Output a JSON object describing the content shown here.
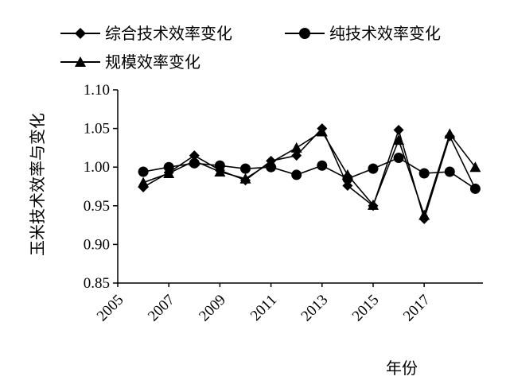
{
  "chart_data": {
    "type": "line",
    "xlabel": "年份",
    "ylabel": "玉米技术效率与变化",
    "ylim": [
      0.85,
      1.1
    ],
    "yticks": [
      "0.85",
      "0.90",
      "0.95",
      "1.00",
      "1.05",
      "1.10"
    ],
    "xtick_labels": [
      "2005",
      "2007",
      "2009",
      "2011",
      "2013",
      "2015",
      "2017"
    ],
    "x": [
      2006,
      2007,
      2008,
      2009,
      2010,
      2011,
      2012,
      2013,
      2014,
      2015,
      2016,
      2017,
      2018,
      2019
    ],
    "grid": false,
    "legend_position": "top",
    "series": [
      {
        "name": "综合技术效率变化",
        "marker": "diamond",
        "color": "#000000",
        "values": [
          0.974,
          0.993,
          1.015,
          0.996,
          0.983,
          1.008,
          1.015,
          1.05,
          0.976,
          0.95,
          1.048,
          0.933,
          1.04,
          0.972
        ]
      },
      {
        "name": "纯技术效率变化",
        "marker": "circle",
        "color": "#000000",
        "values": [
          0.994,
          1.0,
          1.005,
          1.002,
          0.998,
          1.0,
          0.99,
          1.002,
          0.985,
          0.998,
          1.012,
          0.992,
          0.994,
          0.972
        ]
      },
      {
        "name": "规模效率变化",
        "marker": "triangle",
        "color": "#000000",
        "values": [
          0.98,
          0.992,
          1.008,
          0.994,
          0.985,
          1.006,
          1.025,
          1.046,
          0.99,
          0.951,
          1.035,
          0.938,
          1.043,
          1.0
        ]
      }
    ]
  }
}
